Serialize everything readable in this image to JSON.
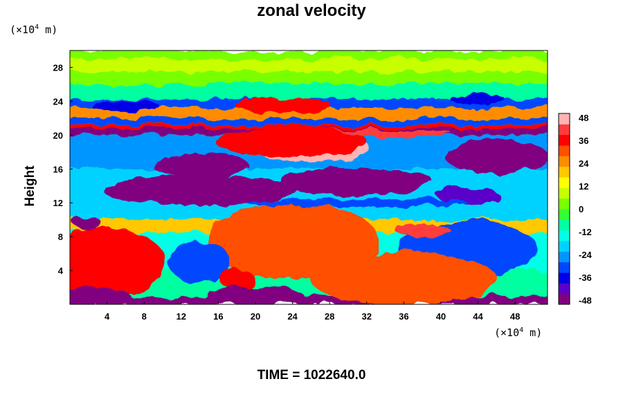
{
  "chart_data": {
    "type": "heatmap",
    "title": "zonal velocity",
    "ylabel": "Height",
    "xlabel": "",
    "x_unit_prefix": "(×10",
    "x_unit_exp": "4",
    "x_unit_suffix": " m)",
    "y_unit_prefix": "(×10",
    "y_unit_exp": "4",
    "y_unit_suffix": " m)",
    "xlim": [
      0,
      51.5
    ],
    "ylim": [
      0,
      30
    ],
    "x_ticks": [
      4,
      8,
      12,
      16,
      20,
      24,
      28,
      32,
      36,
      40,
      44,
      48
    ],
    "y_ticks": [
      4,
      8,
      12,
      16,
      20,
      24,
      28
    ],
    "colorbar": {
      "min": -48,
      "max": 48,
      "ticks": [
        48,
        36,
        24,
        12,
        0,
        -12,
        -24,
        -36,
        -48
      ],
      "colors": [
        "#800080",
        "#5a00c8",
        "#0000e6",
        "#0046ff",
        "#0096ff",
        "#00d2ff",
        "#00ffe6",
        "#00ffa0",
        "#32ff32",
        "#78ff00",
        "#c8ff00",
        "#ffff00",
        "#ffc800",
        "#ff8c00",
        "#ff5000",
        "#ff0000",
        "#ff3c3c",
        "#ffb4b4"
      ]
    },
    "footer": "TIME = 1022640.0"
  },
  "colors": {
    "background": "#ffffff"
  }
}
